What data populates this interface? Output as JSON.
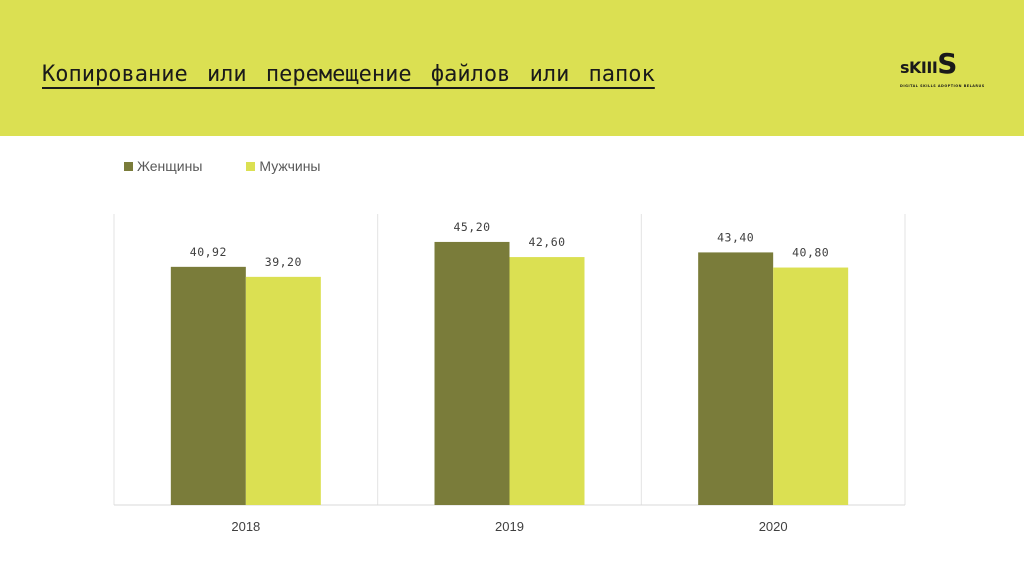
{
  "slide": {
    "title": "Копирование или перемещение файлов или папок"
  },
  "logo": {
    "small": "s",
    "mid": "KIII",
    "big": "S",
    "tagline": "DIGITAL SKILLS ADOPTION BELARUS"
  },
  "colors": {
    "header_band": "#dbe052",
    "women": "#7a7c3a",
    "men": "#dbe052"
  },
  "chart_data": {
    "type": "bar",
    "categories": [
      "2018",
      "2019",
      "2020"
    ],
    "series": [
      {
        "name": "Женщины",
        "values": [
          40.92,
          45.2,
          43.4
        ],
        "labels": [
          "40,92",
          "45,20",
          "43,40"
        ],
        "color": "#7a7c3a"
      },
      {
        "name": "Мужчины",
        "values": [
          39.2,
          42.6,
          40.8
        ],
        "labels": [
          "39,20",
          "42,60",
          "40,80"
        ],
        "color": "#dbe052"
      }
    ],
    "ylim": [
      0,
      50
    ],
    "grid": false,
    "legend_position": "top-left"
  }
}
